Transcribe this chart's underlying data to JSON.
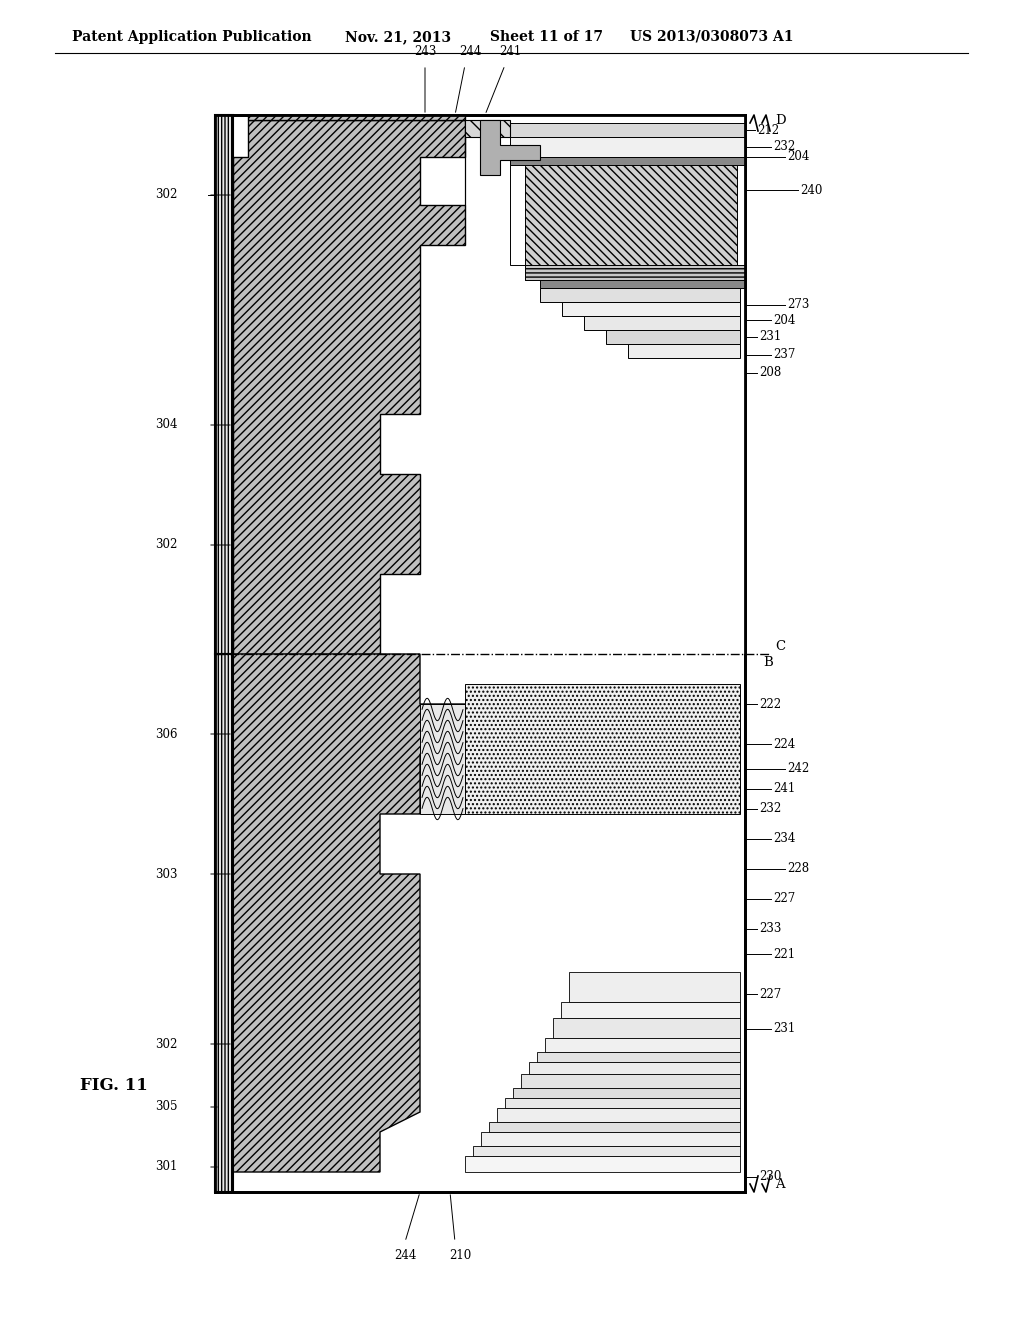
{
  "title_line1": "Patent Application Publication",
  "title_date": "Nov. 21, 2013",
  "title_sheet": "Sheet 11 of 17",
  "title_patent": "US 2013/0308073 A1",
  "fig_label": "FIG. 11",
  "bg_color": "#ffffff",
  "line_color": "#000000",
  "header_fontsize": 10,
  "label_fontsize": 8.5,
  "figlabel_fontsize": 12
}
